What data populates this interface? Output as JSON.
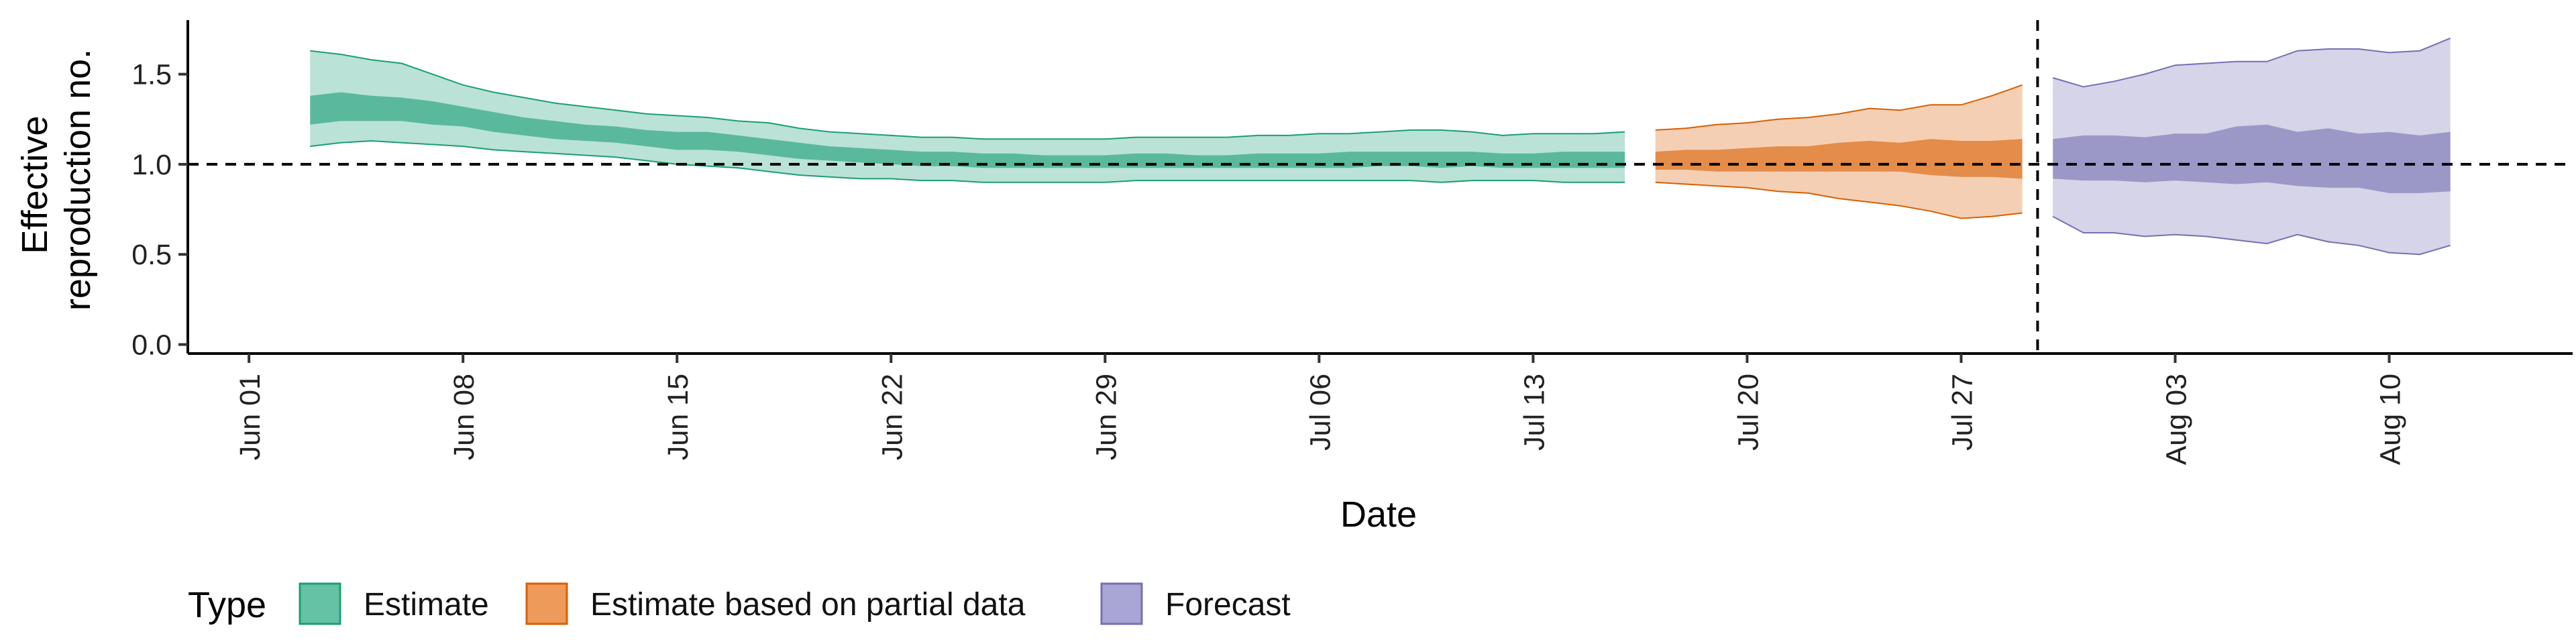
{
  "chart_data": {
    "type": "area",
    "xlabel": "Date",
    "ylabel_lines": [
      "Effective",
      "reproduction no."
    ],
    "ylim": [
      -0.05,
      1.8
    ],
    "xlim": [
      "2020-05-30",
      "2020-08-16"
    ],
    "y_ticks": [
      0.0,
      0.5,
      1.0,
      1.5
    ],
    "y_tick_labels": [
      "0.0",
      "0.5",
      "1.0",
      "1.5"
    ],
    "x_ticks": [
      "2020-06-01",
      "2020-06-08",
      "2020-06-15",
      "2020-06-22",
      "2020-06-29",
      "2020-07-06",
      "2020-07-13",
      "2020-07-20",
      "2020-07-27",
      "2020-08-03",
      "2020-08-10"
    ],
    "x_tick_labels": [
      "Jun 01",
      "Jun 08",
      "Jun 15",
      "Jun 22",
      "Jun 29",
      "Jul 06",
      "Jul 13",
      "Jul 20",
      "Jul 27",
      "Aug 03",
      "Aug 10"
    ],
    "hline_y": 1.0,
    "vline_x": "2020-07-29.5",
    "grid": false,
    "legend": {
      "title": "Type",
      "position": "bottom",
      "items": [
        {
          "label": "Estimate",
          "fill": "#66C2A5",
          "stroke": "#1B9E77"
        },
        {
          "label": "Estimate based on partial data",
          "fill": "#EE9A5A",
          "stroke": "#D95F02"
        },
        {
          "label": "Forecast",
          "fill": "#A9A5D4",
          "stroke": "#7570B3"
        }
      ]
    },
    "series": [
      {
        "name": "Estimate",
        "color": "#1B9E77",
        "outer_alpha": 0.3,
        "inner_alpha": 0.6,
        "points": [
          {
            "x": "2020-06-03",
            "lo90": 1.1,
            "lo50": 1.22,
            "hi50": 1.38,
            "hi90": 1.63
          },
          {
            "x": "2020-06-04",
            "lo90": 1.12,
            "lo50": 1.24,
            "hi50": 1.4,
            "hi90": 1.61
          },
          {
            "x": "2020-06-05",
            "lo90": 1.13,
            "lo50": 1.24,
            "hi50": 1.38,
            "hi90": 1.58
          },
          {
            "x": "2020-06-06",
            "lo90": 1.12,
            "lo50": 1.24,
            "hi50": 1.37,
            "hi90": 1.56
          },
          {
            "x": "2020-06-07",
            "lo90": 1.11,
            "lo50": 1.22,
            "hi50": 1.35,
            "hi90": 1.5
          },
          {
            "x": "2020-06-08",
            "lo90": 1.1,
            "lo50": 1.21,
            "hi50": 1.32,
            "hi90": 1.44
          },
          {
            "x": "2020-06-09",
            "lo90": 1.08,
            "lo50": 1.18,
            "hi50": 1.29,
            "hi90": 1.4
          },
          {
            "x": "2020-06-10",
            "lo90": 1.07,
            "lo50": 1.16,
            "hi50": 1.26,
            "hi90": 1.37
          },
          {
            "x": "2020-06-11",
            "lo90": 1.06,
            "lo50": 1.14,
            "hi50": 1.24,
            "hi90": 1.34
          },
          {
            "x": "2020-06-12",
            "lo90": 1.05,
            "lo50": 1.13,
            "hi50": 1.22,
            "hi90": 1.32
          },
          {
            "x": "2020-06-13",
            "lo90": 1.04,
            "lo50": 1.12,
            "hi50": 1.21,
            "hi90": 1.3
          },
          {
            "x": "2020-06-14",
            "lo90": 1.02,
            "lo50": 1.1,
            "hi50": 1.19,
            "hi90": 1.28
          },
          {
            "x": "2020-06-15",
            "lo90": 1.0,
            "lo50": 1.08,
            "hi50": 1.18,
            "hi90": 1.27
          },
          {
            "x": "2020-06-16",
            "lo90": 0.99,
            "lo50": 1.08,
            "hi50": 1.18,
            "hi90": 1.26
          },
          {
            "x": "2020-06-17",
            "lo90": 0.98,
            "lo50": 1.07,
            "hi50": 1.16,
            "hi90": 1.24
          },
          {
            "x": "2020-06-18",
            "lo90": 0.96,
            "lo50": 1.05,
            "hi50": 1.14,
            "hi90": 1.23
          },
          {
            "x": "2020-06-19",
            "lo90": 0.94,
            "lo50": 1.03,
            "hi50": 1.12,
            "hi90": 1.2
          },
          {
            "x": "2020-06-20",
            "lo90": 0.93,
            "lo50": 1.02,
            "hi50": 1.1,
            "hi90": 1.18
          },
          {
            "x": "2020-06-21",
            "lo90": 0.92,
            "lo50": 1.01,
            "hi50": 1.09,
            "hi90": 1.17
          },
          {
            "x": "2020-06-22",
            "lo90": 0.92,
            "lo50": 1.0,
            "hi50": 1.08,
            "hi90": 1.16
          },
          {
            "x": "2020-06-23",
            "lo90": 0.91,
            "lo50": 0.99,
            "hi50": 1.07,
            "hi90": 1.15
          },
          {
            "x": "2020-06-24",
            "lo90": 0.91,
            "lo50": 0.99,
            "hi50": 1.07,
            "hi90": 1.15
          },
          {
            "x": "2020-06-25",
            "lo90": 0.9,
            "lo50": 0.98,
            "hi50": 1.06,
            "hi90": 1.14
          },
          {
            "x": "2020-06-26",
            "lo90": 0.9,
            "lo50": 0.98,
            "hi50": 1.06,
            "hi90": 1.14
          },
          {
            "x": "2020-06-27",
            "lo90": 0.9,
            "lo50": 0.98,
            "hi50": 1.05,
            "hi90": 1.14
          },
          {
            "x": "2020-06-28",
            "lo90": 0.9,
            "lo50": 0.98,
            "hi50": 1.05,
            "hi90": 1.14
          },
          {
            "x": "2020-06-29",
            "lo90": 0.9,
            "lo50": 0.98,
            "hi50": 1.05,
            "hi90": 1.14
          },
          {
            "x": "2020-06-30",
            "lo90": 0.91,
            "lo50": 0.98,
            "hi50": 1.06,
            "hi90": 1.15
          },
          {
            "x": "2020-07-01",
            "lo90": 0.91,
            "lo50": 0.98,
            "hi50": 1.06,
            "hi90": 1.15
          },
          {
            "x": "2020-07-02",
            "lo90": 0.91,
            "lo50": 0.98,
            "hi50": 1.05,
            "hi90": 1.15
          },
          {
            "x": "2020-07-03",
            "lo90": 0.91,
            "lo50": 0.98,
            "hi50": 1.05,
            "hi90": 1.15
          },
          {
            "x": "2020-07-04",
            "lo90": 0.91,
            "lo50": 0.98,
            "hi50": 1.06,
            "hi90": 1.16
          },
          {
            "x": "2020-07-05",
            "lo90": 0.91,
            "lo50": 0.98,
            "hi50": 1.06,
            "hi90": 1.16
          },
          {
            "x": "2020-07-06",
            "lo90": 0.91,
            "lo50": 0.98,
            "hi50": 1.06,
            "hi90": 1.17
          },
          {
            "x": "2020-07-07",
            "lo90": 0.91,
            "lo50": 0.98,
            "hi50": 1.07,
            "hi90": 1.17
          },
          {
            "x": "2020-07-08",
            "lo90": 0.91,
            "lo50": 0.99,
            "hi50": 1.07,
            "hi90": 1.18
          },
          {
            "x": "2020-07-09",
            "lo90": 0.91,
            "lo50": 0.99,
            "hi50": 1.07,
            "hi90": 1.19
          },
          {
            "x": "2020-07-10",
            "lo90": 0.9,
            "lo50": 0.98,
            "hi50": 1.07,
            "hi90": 1.19
          },
          {
            "x": "2020-07-11",
            "lo90": 0.91,
            "lo50": 0.99,
            "hi50": 1.07,
            "hi90": 1.18
          },
          {
            "x": "2020-07-12",
            "lo90": 0.91,
            "lo50": 0.98,
            "hi50": 1.06,
            "hi90": 1.16
          },
          {
            "x": "2020-07-13",
            "lo90": 0.91,
            "lo50": 0.98,
            "hi50": 1.06,
            "hi90": 1.17
          },
          {
            "x": "2020-07-14",
            "lo90": 0.9,
            "lo50": 0.98,
            "hi50": 1.07,
            "hi90": 1.17
          },
          {
            "x": "2020-07-15",
            "lo90": 0.9,
            "lo50": 0.98,
            "hi50": 1.07,
            "hi90": 1.17
          },
          {
            "x": "2020-07-16",
            "lo90": 0.9,
            "lo50": 0.98,
            "hi50": 1.07,
            "hi90": 1.18
          }
        ]
      },
      {
        "name": "Estimate based on partial data",
        "color": "#D95F02",
        "outer_alpha": 0.3,
        "inner_alpha": 0.6,
        "points": [
          {
            "x": "2020-07-17",
            "lo90": 0.9,
            "lo50": 0.97,
            "hi50": 1.07,
            "hi90": 1.19
          },
          {
            "x": "2020-07-18",
            "lo90": 0.89,
            "lo50": 0.97,
            "hi50": 1.08,
            "hi90": 1.2
          },
          {
            "x": "2020-07-19",
            "lo90": 0.88,
            "lo50": 0.96,
            "hi50": 1.08,
            "hi90": 1.22
          },
          {
            "x": "2020-07-20",
            "lo90": 0.87,
            "lo50": 0.96,
            "hi50": 1.09,
            "hi90": 1.23
          },
          {
            "x": "2020-07-21",
            "lo90": 0.85,
            "lo50": 0.96,
            "hi50": 1.1,
            "hi90": 1.25
          },
          {
            "x": "2020-07-22",
            "lo90": 0.84,
            "lo50": 0.96,
            "hi50": 1.1,
            "hi90": 1.26
          },
          {
            "x": "2020-07-23",
            "lo90": 0.81,
            "lo50": 0.96,
            "hi50": 1.12,
            "hi90": 1.28
          },
          {
            "x": "2020-07-24",
            "lo90": 0.79,
            "lo50": 0.96,
            "hi50": 1.13,
            "hi90": 1.31
          },
          {
            "x": "2020-07-25",
            "lo90": 0.77,
            "lo50": 0.96,
            "hi50": 1.12,
            "hi90": 1.3
          },
          {
            "x": "2020-07-26",
            "lo90": 0.74,
            "lo50": 0.94,
            "hi50": 1.14,
            "hi90": 1.33
          },
          {
            "x": "2020-07-27",
            "lo90": 0.7,
            "lo50": 0.93,
            "hi50": 1.13,
            "hi90": 1.33
          },
          {
            "x": "2020-07-28",
            "lo90": 0.71,
            "lo50": 0.93,
            "hi50": 1.13,
            "hi90": 1.38
          },
          {
            "x": "2020-07-29",
            "lo90": 0.73,
            "lo50": 0.92,
            "hi50": 1.14,
            "hi90": 1.44
          }
        ]
      },
      {
        "name": "Forecast",
        "color": "#7570B3",
        "outer_alpha": 0.3,
        "inner_alpha": 0.6,
        "points": [
          {
            "x": "2020-07-30",
            "lo90": 0.71,
            "lo50": 0.92,
            "hi50": 1.14,
            "hi90": 1.48
          },
          {
            "x": "2020-07-31",
            "lo90": 0.62,
            "lo50": 0.91,
            "hi50": 1.16,
            "hi90": 1.43
          },
          {
            "x": "2020-08-01",
            "lo90": 0.62,
            "lo50": 0.91,
            "hi50": 1.16,
            "hi90": 1.46
          },
          {
            "x": "2020-08-02",
            "lo90": 0.6,
            "lo50": 0.9,
            "hi50": 1.15,
            "hi90": 1.5
          },
          {
            "x": "2020-08-03",
            "lo90": 0.61,
            "lo50": 0.91,
            "hi50": 1.17,
            "hi90": 1.55
          },
          {
            "x": "2020-08-04",
            "lo90": 0.6,
            "lo50": 0.9,
            "hi50": 1.17,
            "hi90": 1.56
          },
          {
            "x": "2020-08-05",
            "lo90": 0.58,
            "lo50": 0.89,
            "hi50": 1.21,
            "hi90": 1.57
          },
          {
            "x": "2020-08-06",
            "lo90": 0.56,
            "lo50": 0.9,
            "hi50": 1.22,
            "hi90": 1.57
          },
          {
            "x": "2020-08-07",
            "lo90": 0.61,
            "lo50": 0.88,
            "hi50": 1.18,
            "hi90": 1.63
          },
          {
            "x": "2020-08-08",
            "lo90": 0.57,
            "lo50": 0.87,
            "hi50": 1.2,
            "hi90": 1.64
          },
          {
            "x": "2020-08-09",
            "lo90": 0.55,
            "lo50": 0.87,
            "hi50": 1.17,
            "hi90": 1.64
          },
          {
            "x": "2020-08-10",
            "lo90": 0.51,
            "lo50": 0.84,
            "hi50": 1.18,
            "hi90": 1.62
          },
          {
            "x": "2020-08-11",
            "lo90": 0.5,
            "lo50": 0.84,
            "hi50": 1.16,
            "hi90": 1.63
          },
          {
            "x": "2020-08-12",
            "lo90": 0.55,
            "lo50": 0.85,
            "hi50": 1.18,
            "hi90": 1.7
          }
        ]
      }
    ]
  }
}
